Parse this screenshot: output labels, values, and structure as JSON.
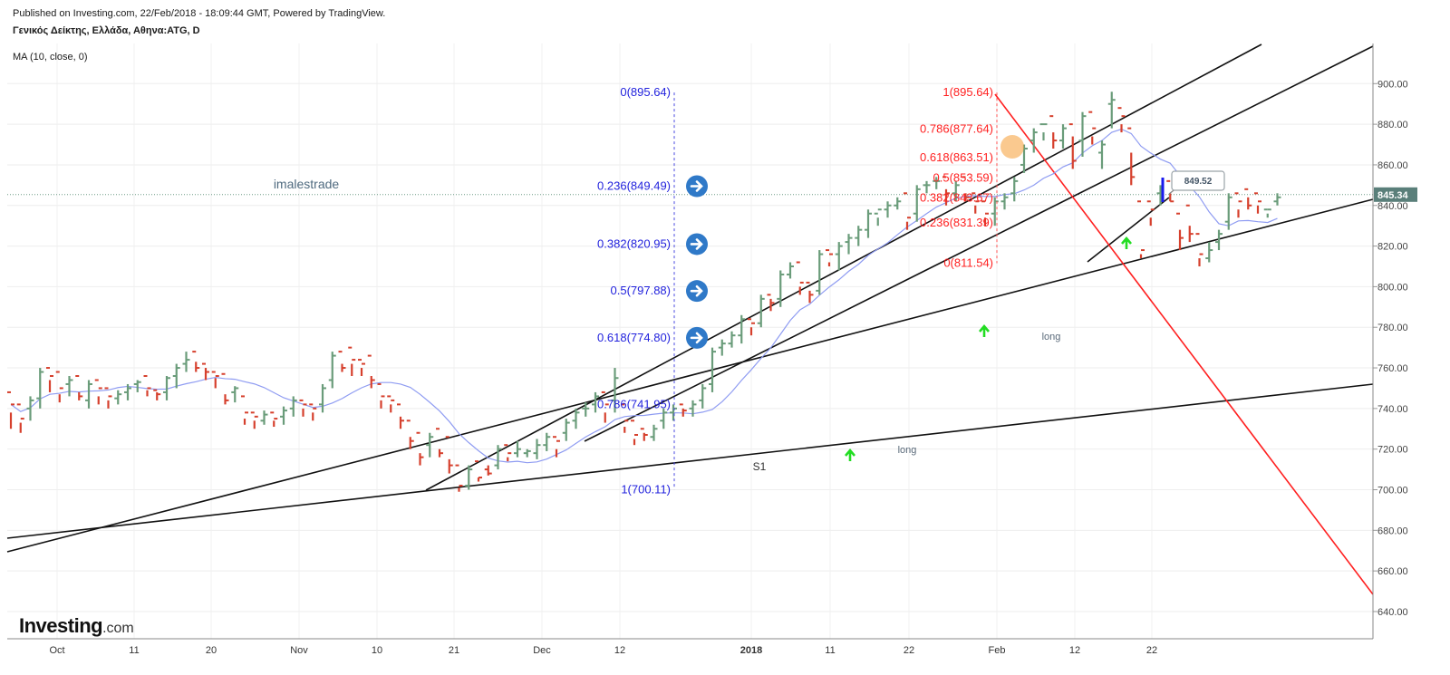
{
  "header": {
    "published": "Published on Investing.com, 22/Feb/2018 - 18:09:44 GMT, Powered by TradingView.",
    "symbol": "Γενικός Δείκτης, Ελλάδα, Αθηνα:ATG, D",
    "indicator": "MA (10, close, 0)"
  },
  "logo": {
    "main": "Investing",
    "suffix": ".com"
  },
  "colors": {
    "up": "#6a9c7a",
    "down": "#d6402d",
    "ma": "#8f9cf2",
    "fib_left": "#2222dd",
    "fib_right": "#ff2020",
    "trend": "#111111",
    "price_box": "#5a7f7a",
    "arrow_green": "#22dd22",
    "circle_blue": "#2f79c8"
  },
  "chart_data": {
    "type": "ohlc",
    "ylim": [
      630,
      920
    ],
    "y_ticks": [
      640,
      660,
      680,
      700,
      720,
      740,
      760,
      780,
      800,
      820,
      840,
      860,
      880,
      900
    ],
    "y_tick_labels": [
      "640.00",
      "660.00",
      "680.00",
      "700.00",
      "720.00",
      "740.00",
      "760.00",
      "780.00",
      "800.00",
      "820.00",
      "840.00",
      "860.00",
      "880.00",
      "900.00"
    ],
    "x_ticks": [
      {
        "label": "Oct",
        "bold": false
      },
      {
        "label": "11",
        "bold": false
      },
      {
        "label": "20",
        "bold": false
      },
      {
        "label": "Nov",
        "bold": false
      },
      {
        "label": "10",
        "bold": false
      },
      {
        "label": "21",
        "bold": false
      },
      {
        "label": "Dec",
        "bold": false
      },
      {
        "label": "12",
        "bold": false
      },
      {
        "label": "2018",
        "bold": true
      },
      {
        "label": "11",
        "bold": false
      },
      {
        "label": "22",
        "bold": false
      },
      {
        "label": "Feb",
        "bold": false
      },
      {
        "label": "12",
        "bold": false
      },
      {
        "label": "22",
        "bold": false
      }
    ],
    "last_price": 845.34,
    "last_price_label": "845.34",
    "price_box_label": "849.52",
    "watermark": "imalestrade",
    "fib_left": [
      {
        "label": "0(895.64)",
        "value": 895.64
      },
      {
        "label": "0.236(849.49)",
        "value": 849.49
      },
      {
        "label": "0.382(820.95)",
        "value": 820.95
      },
      {
        "label": "0.5(797.88)",
        "value": 797.88
      },
      {
        "label": "0.618(774.80)",
        "value": 774.8
      },
      {
        "label": "0.786(741.95)",
        "value": 741.95
      },
      {
        "label": "1(700.11)",
        "value": 700.11
      }
    ],
    "fib_right": [
      {
        "label": "1(895.64)",
        "value": 895.64
      },
      {
        "label": "0.786(877.64)",
        "value": 877.64
      },
      {
        "label": "0.618(863.51)",
        "value": 863.51
      },
      {
        "label": "0.5(853.59)",
        "value": 853.59
      },
      {
        "label": "0.382(843.67)",
        "value": 843.67
      },
      {
        "label": "0.236(831.39)",
        "value": 831.39
      },
      {
        "label": "0(811.54)",
        "value": 811.54
      }
    ],
    "annotations": [
      "long",
      "long",
      "S1"
    ],
    "bars": [
      [
        748,
        738,
        730,
        742
      ],
      [
        742,
        733,
        728,
        735
      ],
      [
        740,
        746,
        734,
        744
      ],
      [
        745,
        760,
        740,
        758
      ],
      [
        760,
        754,
        748,
        756
      ],
      [
        758,
        747,
        743,
        750
      ],
      [
        752,
        756,
        746,
        754
      ],
      [
        756,
        748,
        744,
        746
      ],
      [
        744,
        754,
        740,
        752
      ],
      [
        754,
        746,
        742,
        750
      ],
      [
        750,
        744,
        740,
        746
      ],
      [
        745,
        749,
        742,
        747
      ],
      [
        748,
        752,
        744,
        750
      ],
      [
        752,
        754,
        748,
        753
      ],
      [
        756,
        749,
        746,
        750
      ],
      [
        749,
        748,
        744,
        747
      ],
      [
        748,
        756,
        744,
        755
      ],
      [
        756,
        762,
        750,
        760
      ],
      [
        762,
        768,
        758,
        764
      ],
      [
        768,
        763,
        758,
        760
      ],
      [
        762,
        760,
        754,
        758
      ],
      [
        758,
        755,
        750,
        756
      ],
      [
        757,
        747,
        742,
        744
      ],
      [
        748,
        751,
        743,
        750
      ],
      [
        746,
        735,
        732,
        738
      ],
      [
        738,
        734,
        730,
        736
      ],
      [
        734,
        739,
        732,
        737
      ],
      [
        738,
        734,
        731,
        735
      ],
      [
        736,
        741,
        732,
        739
      ],
      [
        740,
        746,
        736,
        744
      ],
      [
        744,
        740,
        736,
        742
      ],
      [
        742,
        738,
        734,
        740
      ],
      [
        742,
        752,
        738,
        750
      ],
      [
        754,
        768,
        750,
        766
      ],
      [
        768,
        762,
        758,
        760
      ],
      [
        770,
        762,
        756,
        764
      ],
      [
        764,
        760,
        756,
        762
      ],
      [
        766,
        756,
        750,
        754
      ],
      [
        752,
        744,
        740,
        746
      ],
      [
        746,
        742,
        738,
        744
      ],
      [
        742,
        736,
        730,
        734
      ],
      [
        734,
        726,
        720,
        724
      ],
      [
        728,
        718,
        712,
        716
      ],
      [
        722,
        728,
        716,
        726
      ],
      [
        730,
        720,
        716,
        718
      ],
      [
        726,
        715,
        708,
        712
      ],
      [
        712,
        701,
        699,
        702
      ],
      [
        702,
        712,
        700,
        710
      ],
      [
        714,
        706,
        704,
        706
      ],
      [
        710,
        712,
        707,
        708
      ],
      [
        712,
        722,
        710,
        720
      ],
      [
        722,
        716,
        714,
        718
      ],
      [
        718,
        724,
        716,
        720
      ],
      [
        718,
        720,
        716,
        719
      ],
      [
        718,
        725,
        715,
        722
      ],
      [
        722,
        728,
        719,
        726
      ],
      [
        726,
        720,
        716,
        724
      ],
      [
        728,
        735,
        724,
        733
      ],
      [
        734,
        740,
        730,
        738
      ],
      [
        740,
        743,
        736,
        740
      ],
      [
        742,
        748,
        738,
        746
      ],
      [
        748,
        738,
        733,
        742
      ],
      [
        744,
        760,
        738,
        755
      ],
      [
        742,
        731,
        728,
        734
      ],
      [
        734,
        725,
        722,
        727
      ],
      [
        730,
        728,
        724,
        727
      ],
      [
        726,
        732,
        724,
        730
      ],
      [
        734,
        740,
        730,
        738
      ],
      [
        738,
        742,
        734,
        740
      ],
      [
        742,
        740,
        736,
        739
      ],
      [
        740,
        744,
        736,
        742
      ],
      [
        744,
        752,
        740,
        750
      ],
      [
        752,
        770,
        748,
        768
      ],
      [
        770,
        774,
        766,
        772
      ],
      [
        772,
        778,
        770,
        776
      ],
      [
        776,
        786,
        772,
        784
      ],
      [
        784,
        780,
        776,
        782
      ],
      [
        782,
        796,
        780,
        794
      ],
      [
        796,
        794,
        788,
        792
      ],
      [
        794,
        808,
        790,
        806
      ],
      [
        806,
        812,
        804,
        810
      ],
      [
        812,
        800,
        796,
        802
      ],
      [
        802,
        798,
        792,
        796
      ],
      [
        798,
        818,
        796,
        816
      ],
      [
        818,
        812,
        810,
        816
      ],
      [
        816,
        822,
        808,
        820
      ],
      [
        822,
        826,
        816,
        824
      ],
      [
        824,
        830,
        820,
        828
      ],
      [
        828,
        838,
        824,
        836
      ],
      [
        836,
        834,
        830,
        838
      ],
      [
        838,
        842,
        834,
        840
      ],
      [
        840,
        844,
        838,
        842
      ],
      [
        846,
        832,
        828,
        834
      ],
      [
        836,
        850,
        832,
        848
      ],
      [
        850,
        852,
        846,
        850
      ],
      [
        852,
        854,
        848,
        852
      ],
      [
        854,
        848,
        840,
        846
      ],
      [
        846,
        852,
        842,
        850
      ],
      [
        854,
        846,
        842,
        844
      ],
      [
        846,
        840,
        836,
        842
      ],
      [
        842,
        834,
        830,
        836
      ],
      [
        836,
        844,
        830,
        842
      ],
      [
        842,
        846,
        838,
        844
      ],
      [
        846,
        854,
        842,
        852
      ],
      [
        860,
        870,
        856,
        868
      ],
      [
        872,
        878,
        866,
        876
      ],
      [
        880,
        876,
        872,
        880
      ],
      [
        884,
        876,
        868,
        872
      ],
      [
        872,
        880,
        868,
        878
      ],
      [
        880,
        874,
        858,
        862
      ],
      [
        872,
        886,
        864,
        884
      ],
      [
        886,
        874,
        870,
        878
      ],
      [
        866,
        872,
        858,
        870
      ],
      [
        890,
        896,
        878,
        892
      ],
      [
        888,
        880,
        876,
        884
      ],
      [
        878,
        866,
        850,
        854
      ],
      [
        842,
        816,
        814,
        818
      ],
      [
        842,
        834,
        830,
        838
      ],
      [
        846,
        850,
        840,
        848
      ],
      [
        852,
        846,
        842,
        842
      ],
      [
        836,
        828,
        818,
        824
      ],
      [
        840,
        830,
        822,
        826
      ],
      [
        826,
        814,
        810,
        816
      ],
      [
        814,
        822,
        812,
        818
      ],
      [
        822,
        828,
        818,
        826
      ],
      [
        832,
        846,
        828,
        844
      ],
      [
        846,
        838,
        834,
        842
      ],
      [
        848,
        844,
        838,
        840
      ],
      [
        846,
        840,
        836,
        842
      ],
      [
        838,
        836,
        834,
        838
      ],
      [
        842,
        846,
        840,
        844
      ]
    ]
  }
}
